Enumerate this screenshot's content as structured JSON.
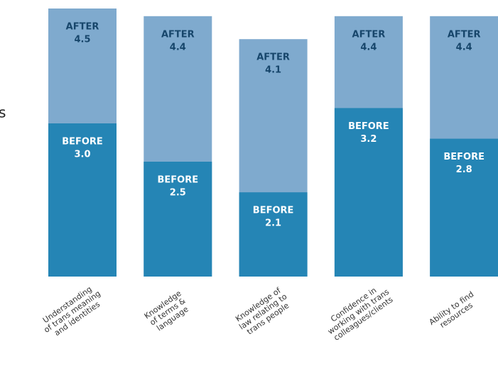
{
  "chart_data": {
    "type": "bar",
    "annotation": "s",
    "categories": [
      [
        "Understanding",
        "of trans meaning",
        "and identities"
      ],
      [
        "Knowledge",
        "of terms &",
        "language"
      ],
      [
        "Knowledge of",
        "law relating to",
        "trans people"
      ],
      [
        "Confidence in",
        "working with trans",
        "colleagues/clients"
      ],
      [
        "Ability to find",
        "resources"
      ]
    ],
    "series": [
      {
        "name": "AFTER",
        "color": "#7faace",
        "label_color": "#17466b",
        "values": [
          4.5,
          4.4,
          4.1,
          4.4,
          4.4
        ],
        "value_labels": [
          "4.5",
          "4.4",
          "4.1",
          "4.4",
          "4.4"
        ]
      },
      {
        "name": "BEFORE",
        "color": "#2585b5",
        "label_color": "#ffffff",
        "values": [
          3.0,
          2.5,
          2.1,
          3.2,
          2.8
        ],
        "value_labels": [
          "3.0",
          "2.5",
          "2.1",
          "3.2",
          "2.8"
        ]
      }
    ],
    "ylim": [
      1,
      4.5
    ]
  }
}
